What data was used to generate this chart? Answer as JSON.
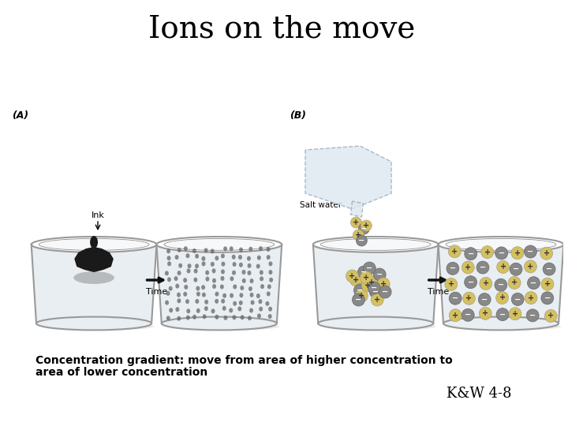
{
  "title": "Ions on the move",
  "title_fontsize": 28,
  "title_font": "serif",
  "title_color": "#000000",
  "bg_color": "#ffffff",
  "label_A": "(A)",
  "label_B": "(B)",
  "label_ink": "Ink",
  "label_saltwater": "Salt water",
  "label_time1": "Time",
  "label_time2": "Time",
  "caption_line1": "Concentration gradient: move from area of higher concentration to",
  "caption_line2": "area of lower concentration",
  "caption_fontsize": 10,
  "credit": "K&W 4-8",
  "credit_fontsize": 13,
  "beaker_fill": "#e8eef2",
  "beaker_edge": "#999999",
  "beaker_water": "#dde8ee",
  "ink_color": "#1a1a1a",
  "ink_shadow": "#888888",
  "plus_circle": "#d4c060",
  "plus_text": "#333333",
  "minus_circle": "#888888",
  "minus_text": "#222244",
  "arrow_color": "#111111",
  "dot_color": "#666666"
}
